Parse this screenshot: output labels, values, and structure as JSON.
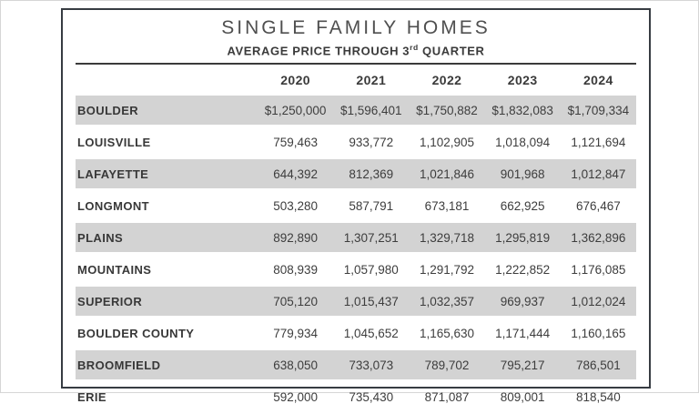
{
  "colors": {
    "card_border": "#373c42",
    "stripe": "#d3d3d3",
    "rule": "#3a3a3a",
    "text": "#3d3d3d"
  },
  "header": {
    "title": "SINGLE FAMILY HOMES",
    "subtitle_prefix": "AVERAGE PRICE THROUGH 3",
    "subtitle_sup": "rd",
    "subtitle_suffix": " QUARTER"
  },
  "chart_data": {
    "type": "table",
    "title": "SINGLE FAMILY HOMES",
    "subtitle": "AVERAGE PRICE THROUGH 3rd QUARTER",
    "columns": [
      "2020",
      "2021",
      "2022",
      "2023",
      "2024"
    ],
    "rows": [
      {
        "label": "BOULDER",
        "values": [
          "$1,250,000",
          "$1,596,401",
          "$1,750,882",
          "$1,832,083",
          "$1,709,334"
        ]
      },
      {
        "label": "LOUISVILLE",
        "values": [
          "759,463",
          "933,772",
          "1,102,905",
          "1,018,094",
          "1,121,694"
        ]
      },
      {
        "label": "LAFAYETTE",
        "values": [
          "644,392",
          "812,369",
          "1,021,846",
          "901,968",
          "1,012,847"
        ]
      },
      {
        "label": "LONGMONT",
        "values": [
          "503,280",
          "587,791",
          "673,181",
          "662,925",
          "676,467"
        ]
      },
      {
        "label": "PLAINS",
        "values": [
          "892,890",
          "1,307,251",
          "1,329,718",
          "1,295,819",
          "1,362,896"
        ]
      },
      {
        "label": "MOUNTAINS",
        "values": [
          "808,939",
          "1,057,980",
          "1,291,792",
          "1,222,852",
          "1,176,085"
        ]
      },
      {
        "label": "SUPERIOR",
        "values": [
          "705,120",
          "1,015,437",
          "1,032,357",
          "969,937",
          "1,012,024"
        ]
      },
      {
        "label": "BOULDER COUNTY",
        "values": [
          "779,934",
          "1,045,652",
          "1,165,630",
          "1,171,444",
          "1,160,165"
        ]
      },
      {
        "label": "BROOMFIELD",
        "values": [
          "638,050",
          "733,073",
          "789,702",
          "795,217",
          "786,501"
        ]
      },
      {
        "label": "ERIE",
        "values": [
          "592,000",
          "735,430",
          "871,087",
          "809,001",
          "818,540"
        ]
      }
    ]
  }
}
